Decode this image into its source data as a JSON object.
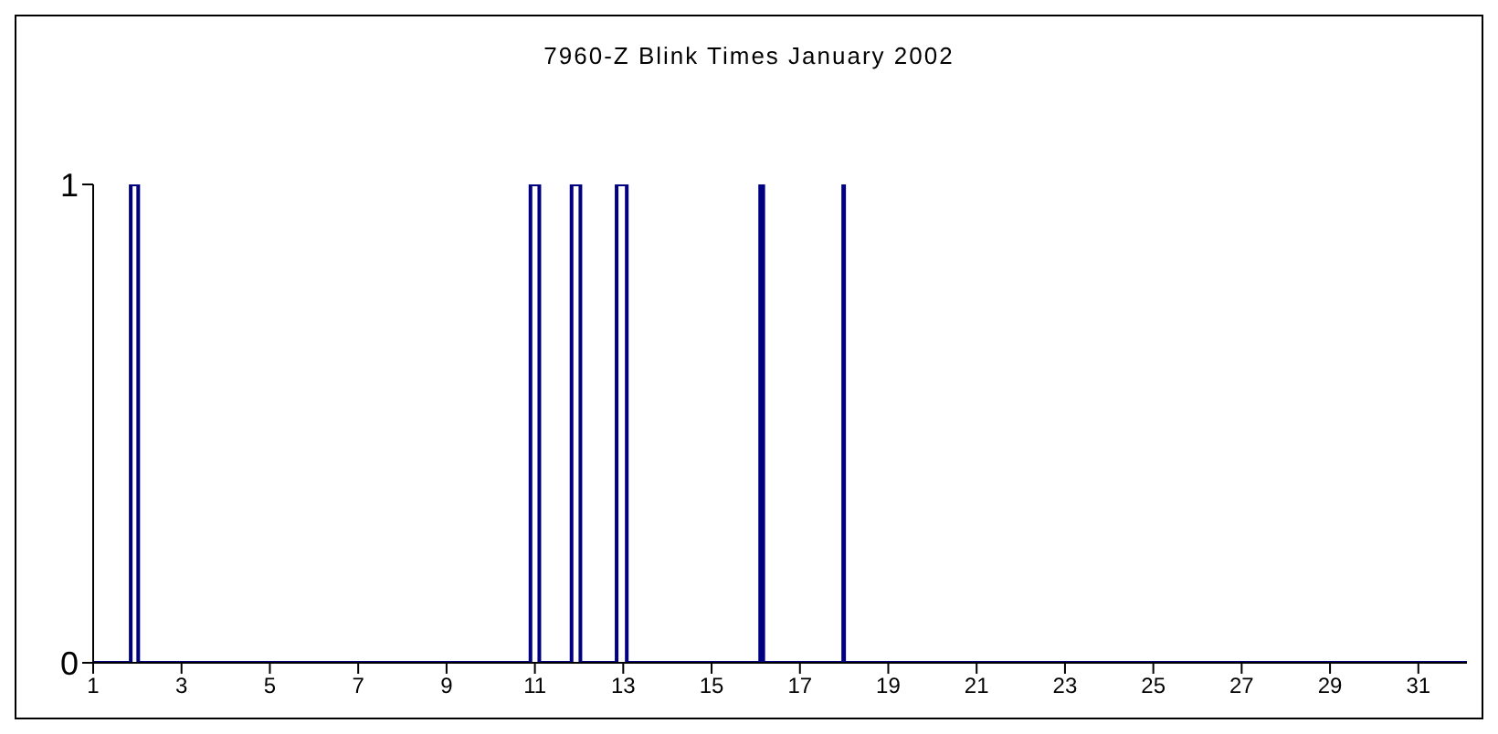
{
  "chart_data": {
    "type": "step",
    "title": "7960-Z Blink Times  January 2002",
    "x": [
      1,
      1.85,
      2.02,
      10.9,
      11.1,
      11.83,
      12.03,
      12.85,
      13.08,
      16.1,
      16.17,
      17.98,
      18.0,
      32.1
    ],
    "series": [
      {
        "color": "#000080",
        "values": [
          0,
          1,
          0,
          1,
          0,
          1,
          0,
          1,
          0,
          1,
          0,
          1,
          0,
          0
        ]
      }
    ],
    "xlim": [
      1,
      32.1
    ],
    "xticks": [
      1,
      3,
      5,
      7,
      9,
      11,
      13,
      15,
      17,
      19,
      21,
      23,
      25,
      27,
      29,
      31
    ],
    "ylim": [
      0,
      1
    ],
    "yticks": [
      0,
      1
    ],
    "grid": false,
    "legend": false,
    "marker": "none"
  }
}
